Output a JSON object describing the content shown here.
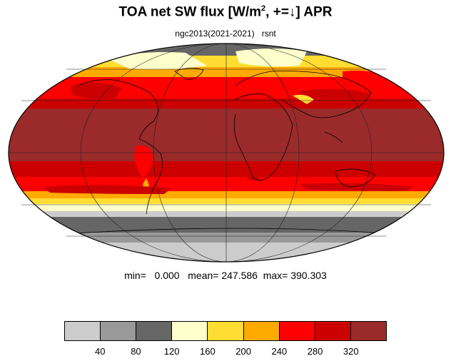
{
  "title": {
    "main": "TOA net SW flux [W/m",
    "sup": "2",
    "rest": ", +=↓]  APR"
  },
  "subtitle": {
    "model": "ngc2013(2021-2021)",
    "variable": "rsnt"
  },
  "stats": {
    "text": "min=   0.000   mean= 247.586  max= 390.303"
  },
  "colorbar": {
    "colors": [
      "#cccccc",
      "#999999",
      "#666666",
      "#ffffcc",
      "#ffdd33",
      "#ffaa00",
      "#ff0000",
      "#cc0000",
      "#9b2a2a"
    ],
    "labels": [
      "40",
      "80",
      "120",
      "160",
      "200",
      "240",
      "280",
      "320"
    ]
  }
}
